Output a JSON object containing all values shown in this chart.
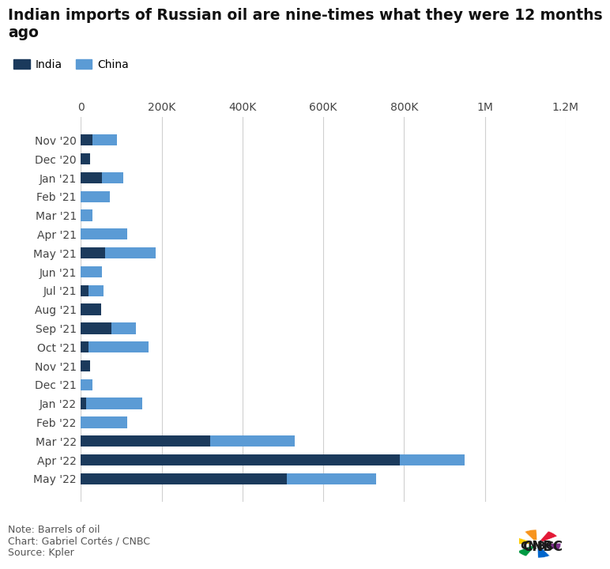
{
  "title_line1": "Indian imports of Russian oil are nine-times what they were 12 months",
  "title_line2": "ago",
  "labels": [
    "Nov '20",
    "Dec '20",
    "Jan '21",
    "Feb '21",
    "Mar '21",
    "Apr '21",
    "May '21",
    "Jun '21",
    "Jul '21",
    "Aug '21",
    "Sep '21",
    "Oct '21",
    "Nov '21",
    "Dec '21",
    "Jan '22",
    "Feb '22",
    "Mar '22",
    "Apr '22",
    "May '22"
  ],
  "india_values": [
    28000,
    22000,
    52000,
    0,
    0,
    0,
    60000,
    0,
    18000,
    50000,
    75000,
    18000,
    22000,
    0,
    12000,
    0,
    320000,
    790000,
    510000
  ],
  "china_values": [
    62000,
    0,
    52000,
    72000,
    28000,
    115000,
    125000,
    52000,
    38000,
    0,
    62000,
    150000,
    0,
    28000,
    140000,
    115000,
    210000,
    160000,
    220000
  ],
  "india_color": "#1b3a5c",
  "china_color": "#5b9bd5",
  "xlim": [
    0,
    1200000
  ],
  "xtick_labels": [
    "0",
    "200K",
    "400K",
    "600K",
    "800K",
    "1M",
    "1.2M"
  ],
  "xtick_values": [
    0,
    200000,
    400000,
    600000,
    800000,
    1000000,
    1200000
  ],
  "note": "Note: Barrels of oil",
  "chart_credit": "Chart: Gabriel Cortés / CNBC",
  "source": "Source: Kpler",
  "background_color": "#ffffff",
  "title_fontsize": 13.5,
  "tick_fontsize": 10
}
